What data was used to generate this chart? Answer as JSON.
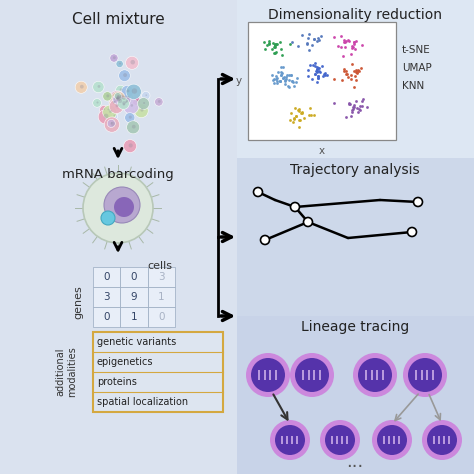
{
  "bg_left_color": "#dae2ef",
  "bg_right_color": "#cdd8ea",
  "bg_right_top_color": "#dde7f3",
  "bg_right_mid_color": "#cdd8ea",
  "bg_right_bot_color": "#c8d3e8",
  "title_cell_mixture": "Cell mixture",
  "title_dim_reduction": "Dimensionality reduction",
  "title_trajectory": "Trajectory analysis",
  "title_lineage": "Lineage tracing",
  "mrna_label": "mRNA barcoding",
  "cells_label": "cells",
  "genes_label": "genes",
  "add_mod_label_1": "additional",
  "add_mod_label_2": "modalities",
  "additional_modalities": [
    "genetic variants",
    "epigenetics",
    "proteins",
    "spatial localization"
  ],
  "matrix_values": [
    [
      "0",
      "0",
      "3"
    ],
    [
      "3",
      "9",
      "1"
    ],
    [
      "0",
      "1",
      "0"
    ]
  ],
  "tsne_labels": [
    "t-SNE",
    "UMAP",
    "KNN"
  ],
  "cluster_colors": [
    "#2e9e52",
    "#4466cc",
    "#cc44aa",
    "#7744bb",
    "#cc4444",
    "#8855aa",
    "#ccaa22",
    "#66aacc"
  ],
  "lineage_cell_color": "#5533aa",
  "lineage_ring_color": "#cc88dd",
  "dots": "..."
}
